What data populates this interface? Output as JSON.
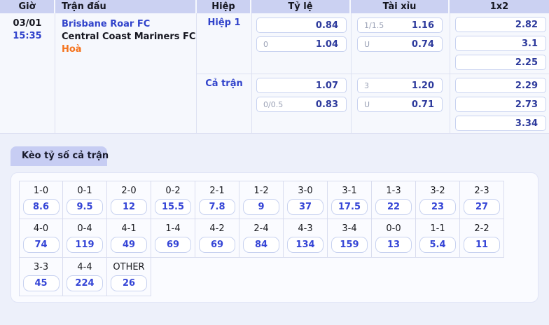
{
  "odds_table": {
    "columns": [
      "Giờ",
      "Trận đấu",
      "Hiệp",
      "Tỷ lệ",
      "Tài xỉu",
      "1x2"
    ],
    "match": {
      "date": "03/01",
      "time": "15:35",
      "home": "Brisbane Roar FC",
      "away": "Central Coast Mariners FC",
      "draw_label": "Hoà"
    },
    "periods": [
      {
        "label": "Hiệp 1",
        "ty_le": [
          {
            "hdp": "",
            "odds": "0.84"
          },
          {
            "hdp": "0",
            "odds": "1.04"
          }
        ],
        "tai_xiu": [
          {
            "hdp": "1/1.5",
            "odds": "1.16"
          },
          {
            "hdp": "U",
            "odds": "0.74"
          }
        ],
        "one_x_two": [
          "2.82",
          "3.1",
          "2.25"
        ]
      },
      {
        "label": "Cả trận",
        "ty_le": [
          {
            "hdp": "",
            "odds": "1.07"
          },
          {
            "hdp": "0/0.5",
            "odds": "0.83"
          }
        ],
        "tai_xiu": [
          {
            "hdp": "3",
            "odds": "1.20"
          },
          {
            "hdp": "U",
            "odds": "0.71"
          }
        ],
        "one_x_two": [
          "2.29",
          "2.73",
          "3.34"
        ]
      }
    ]
  },
  "correct_score": {
    "tab_label": "Kèo tỷ số cả trận",
    "rows": [
      [
        {
          "score": "1-0",
          "odds": "8.6"
        },
        {
          "score": "0-1",
          "odds": "9.5"
        },
        {
          "score": "2-0",
          "odds": "12"
        },
        {
          "score": "0-2",
          "odds": "15.5"
        },
        {
          "score": "2-1",
          "odds": "7.8"
        },
        {
          "score": "1-2",
          "odds": "9"
        },
        {
          "score": "3-0",
          "odds": "37"
        },
        {
          "score": "3-1",
          "odds": "17.5"
        },
        {
          "score": "1-3",
          "odds": "22"
        },
        {
          "score": "3-2",
          "odds": "23"
        },
        {
          "score": "2-3",
          "odds": "27"
        }
      ],
      [
        {
          "score": "4-0",
          "odds": "74"
        },
        {
          "score": "0-4",
          "odds": "119"
        },
        {
          "score": "4-1",
          "odds": "49"
        },
        {
          "score": "1-4",
          "odds": "69"
        },
        {
          "score": "4-2",
          "odds": "69"
        },
        {
          "score": "2-4",
          "odds": "84"
        },
        {
          "score": "4-3",
          "odds": "134"
        },
        {
          "score": "3-4",
          "odds": "159"
        },
        {
          "score": "0-0",
          "odds": "13"
        },
        {
          "score": "1-1",
          "odds": "5.4"
        },
        {
          "score": "2-2",
          "odds": "11"
        }
      ],
      [
        {
          "score": "3-3",
          "odds": "45"
        },
        {
          "score": "4-4",
          "odds": "224"
        },
        {
          "score": "OTHER",
          "odds": "26"
        }
      ]
    ]
  },
  "colors": {
    "page_bg": "#edf0fa",
    "header_bg": "#cbd1f2",
    "table_bg": "#f6f8fd",
    "accent_blue": "#3143cb",
    "odds_navy": "#2d3a9c",
    "score_odds_blue": "#3545d6",
    "draw_orange": "#f5731d",
    "hdp_gray": "#989fb4",
    "tab_bg": "#c7cdf3"
  }
}
